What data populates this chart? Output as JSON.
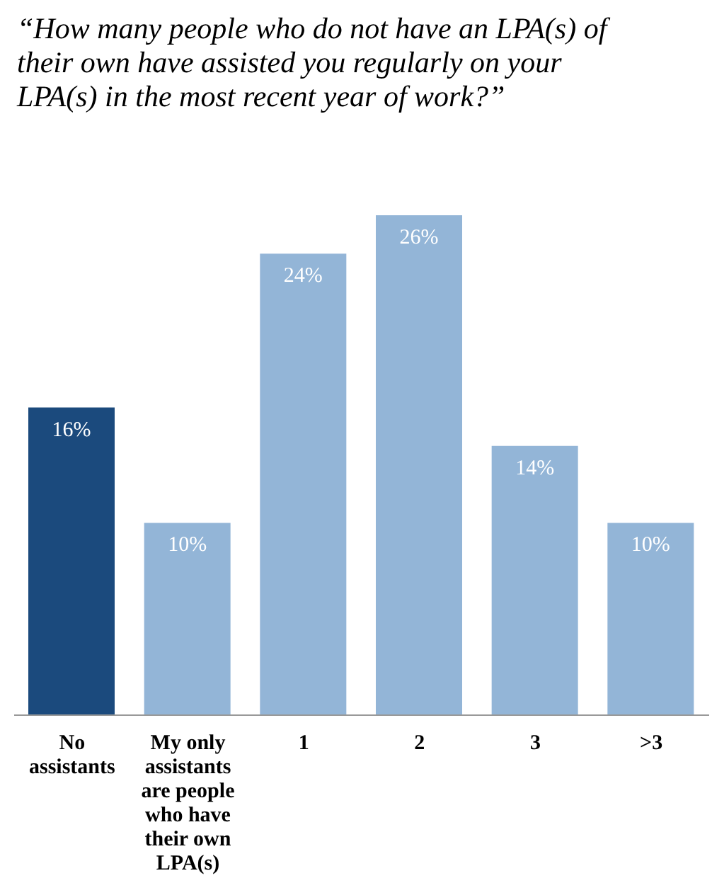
{
  "chart_data": {
    "type": "bar",
    "title": "“How many people who do not have an LPA(s) of their own have assisted you regularly on your LPA(s) in the most recent year of work?”",
    "categories": [
      "No assistants",
      "My only assistants are people who have their own LPA(s)",
      "1",
      "2",
      "3",
      ">3"
    ],
    "values": [
      16,
      10,
      24,
      26,
      14,
      10
    ],
    "colors": [
      "#1b4a7d",
      "#93b5d7",
      "#93b5d7",
      "#93b5d7",
      "#93b5d7",
      "#93b5d7"
    ],
    "value_labels": [
      "16%",
      "10%",
      "24%",
      "26%",
      "14%",
      "10%"
    ],
    "grid": false,
    "legend": false
  }
}
